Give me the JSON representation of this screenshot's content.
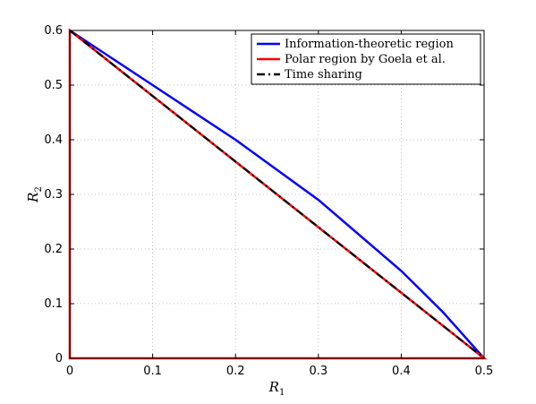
{
  "chart_data": {
    "type": "line",
    "xlabel": "R",
    "xlabel_sub": "1",
    "ylabel": "R",
    "ylabel_sub": "2",
    "xlim": [
      0,
      0.5
    ],
    "ylim": [
      0,
      0.6
    ],
    "xticks": [
      0,
      0.1,
      0.2,
      0.3,
      0.4,
      0.5
    ],
    "xtick_labels": [
      "0",
      "0.1",
      "0.2",
      "0.3",
      "0.4",
      "0.5"
    ],
    "yticks": [
      0,
      0.1,
      0.2,
      0.3,
      0.4,
      0.5,
      0.6
    ],
    "ytick_labels": [
      "0",
      "0.1",
      "0.2",
      "0.3",
      "0.4",
      "0.5",
      "0.6"
    ],
    "grid": true,
    "legend_position": "top-right",
    "series": [
      {
        "name": "Information-theoretic region",
        "color": "#0000ff",
        "dash": "solid",
        "x": [
          0,
          0.1,
          0.2,
          0.3,
          0.4,
          0.45,
          0.5
        ],
        "y": [
          0.6,
          0.5,
          0.4,
          0.29,
          0.16,
          0.085,
          0.0
        ]
      },
      {
        "name": "Polar region by Goela et al.",
        "color": "#ff0000",
        "dash": "solid",
        "x": [
          0,
          0,
          0.5,
          0,
          0
        ],
        "y": [
          0,
          0.6,
          0.0,
          0.0,
          0.6
        ]
      },
      {
        "name": "Time sharing",
        "color": "#000000",
        "dash": "dashdot",
        "x": [
          0,
          0.5
        ],
        "y": [
          0.6,
          0.0
        ]
      }
    ]
  }
}
